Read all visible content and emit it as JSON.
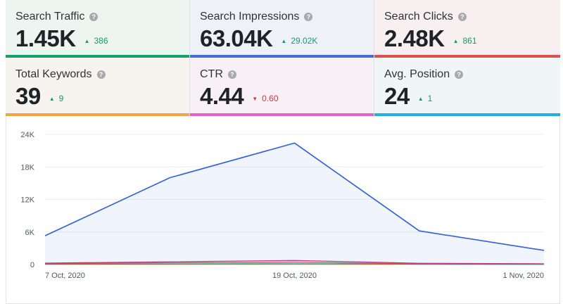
{
  "cards": [
    {
      "title": "Search Traffic",
      "value": "1.45K",
      "delta": "386",
      "direction": "up",
      "bg": "#eef5f1",
      "accent": "#16a06b"
    },
    {
      "title": "Search Impressions",
      "value": "63.04K",
      "delta": "29.02K",
      "direction": "up",
      "bg": "#eef1f8",
      "accent": "#3d6fd9"
    },
    {
      "title": "Search Clicks",
      "value": "2.48K",
      "delta": "861",
      "direction": "up",
      "bg": "#f8eff0",
      "accent": "#e0504c"
    },
    {
      "title": "Total Keywords",
      "value": "39",
      "delta": "9",
      "direction": "up",
      "bg": "#f7f4f0",
      "accent": "#f0a347"
    },
    {
      "title": "CTR",
      "value": "4.44",
      "delta": "0.60",
      "direction": "down",
      "bg": "#f8f0f7",
      "accent": "#d865d4"
    },
    {
      "title": "Avg. Position",
      "value": "24",
      "delta": "1",
      "direction": "up",
      "bg": "#f0f5f8",
      "accent": "#23b0dc"
    }
  ],
  "help_glyph": "?",
  "arrows": {
    "up": "▲",
    "down": "▼"
  },
  "chart_data": {
    "type": "area",
    "x": [
      "7 Oct, 2020",
      "13 Oct, 2020",
      "19 Oct, 2020",
      "25 Oct, 2020",
      "1 Nov, 2020"
    ],
    "x_tick_labels": [
      "7 Oct, 2020",
      "19 Oct, 2020",
      "1 Nov, 2020"
    ],
    "y_ticks": [
      "0",
      "6K",
      "12K",
      "18K",
      "24K"
    ],
    "ylim": [
      0,
      24000
    ],
    "grid": true,
    "series": [
      {
        "color": "#2f5fe0",
        "fill": "rgba(47,95,224,0.07)",
        "values": [
          5300,
          16000,
          22400,
          6200,
          2600
        ]
      },
      {
        "color": "#c23a8a",
        "values": [
          260,
          500,
          750,
          230,
          130
        ]
      },
      {
        "color": "#e0504c",
        "values": [
          160,
          320,
          420,
          140,
          90
        ]
      },
      {
        "color": "#16a06b",
        "values": [
          50,
          90,
          130,
          60,
          40
        ]
      },
      {
        "color": "#f0a347",
        "values": [
          30,
          40,
          50,
          35,
          30
        ]
      }
    ]
  }
}
